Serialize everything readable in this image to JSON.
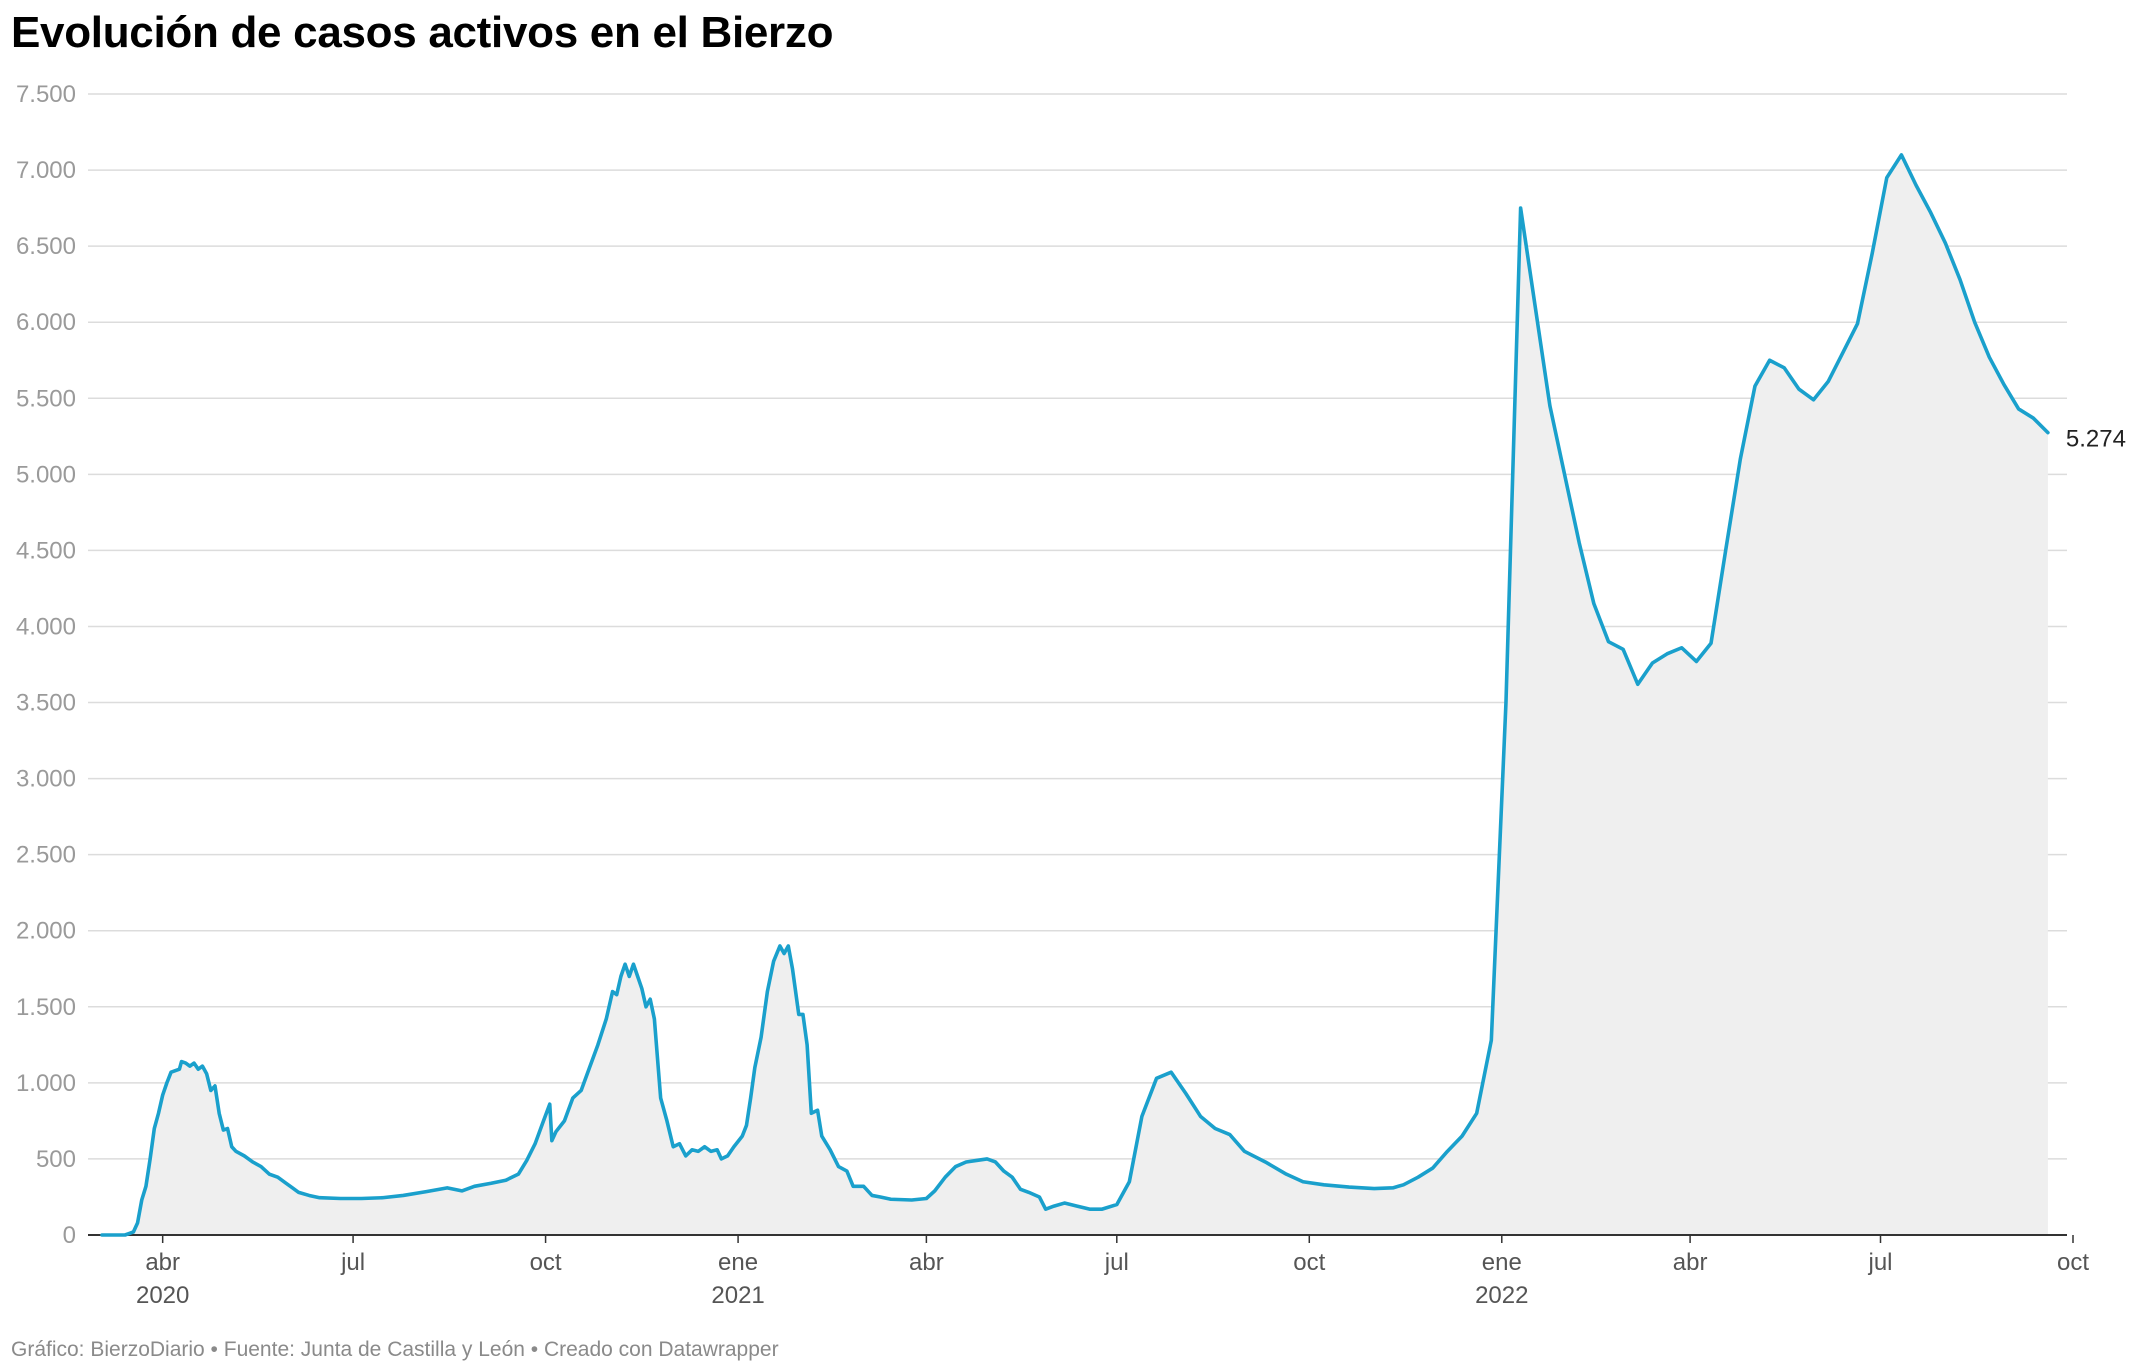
{
  "title": "Evolución de casos activos en el Bierzo",
  "footer": "Gráfico: BierzoDiario • Fuente: Junta de Castilla y León • Creado con Datawrapper",
  "colors": {
    "line": "#1aa0cc",
    "area": "#efefef",
    "grid": "#dcdcdc",
    "baseline": "#333333"
  },
  "chart_data": {
    "type": "area",
    "title": "Evolución de casos activos en el Bierzo",
    "xlabel": "",
    "ylabel": "",
    "grid": true,
    "xlim": [
      "2020-03-03",
      "2022-10-01"
    ],
    "ylim": [
      0,
      7500
    ],
    "yticks": [
      0,
      500,
      1000,
      1500,
      2000,
      2500,
      3000,
      3500,
      4000,
      4500,
      5000,
      5500,
      6000,
      6500,
      7000,
      7500
    ],
    "ytick_labels": [
      "0",
      "500",
      "1.000",
      "1.500",
      "2.000",
      "2.500",
      "3.000",
      "3.500",
      "4.000",
      "4.500",
      "5.000",
      "5.500",
      "6.000",
      "6.500",
      "7.000",
      "7.500"
    ],
    "xticks": [
      {
        "date": "2020-04-01",
        "label": "abr",
        "year": "2020"
      },
      {
        "date": "2020-07-01",
        "label": "jul",
        "year": ""
      },
      {
        "date": "2020-10-01",
        "label": "oct",
        "year": ""
      },
      {
        "date": "2021-01-01",
        "label": "ene",
        "year": "2021"
      },
      {
        "date": "2021-04-01",
        "label": "abr",
        "year": ""
      },
      {
        "date": "2021-07-01",
        "label": "jul",
        "year": ""
      },
      {
        "date": "2021-10-01",
        "label": "oct",
        "year": ""
      },
      {
        "date": "2022-01-01",
        "label": "ene",
        "year": "2022"
      },
      {
        "date": "2022-04-01",
        "label": "abr",
        "year": ""
      },
      {
        "date": "2022-07-01",
        "label": "jul",
        "year": ""
      },
      {
        "date": "2022-10-01",
        "label": "oct",
        "year": ""
      }
    ],
    "end_label": "5.274",
    "series": [
      {
        "name": "",
        "points": [
          [
            "2020-03-03",
            0
          ],
          [
            "2020-03-14",
            0
          ],
          [
            "2020-03-18",
            20
          ],
          [
            "2020-03-20",
            80
          ],
          [
            "2020-03-22",
            230
          ],
          [
            "2020-03-24",
            320
          ],
          [
            "2020-03-26",
            500
          ],
          [
            "2020-03-28",
            700
          ],
          [
            "2020-03-30",
            800
          ],
          [
            "2020-04-01",
            920
          ],
          [
            "2020-04-03",
            1000
          ],
          [
            "2020-04-05",
            1070
          ],
          [
            "2020-04-07",
            1080
          ],
          [
            "2020-04-09",
            1090
          ],
          [
            "2020-04-10",
            1140
          ],
          [
            "2020-04-12",
            1130
          ],
          [
            "2020-04-14",
            1110
          ],
          [
            "2020-04-16",
            1130
          ],
          [
            "2020-04-18",
            1090
          ],
          [
            "2020-04-20",
            1110
          ],
          [
            "2020-04-22",
            1060
          ],
          [
            "2020-04-24",
            950
          ],
          [
            "2020-04-26",
            980
          ],
          [
            "2020-04-28",
            800
          ],
          [
            "2020-04-30",
            690
          ],
          [
            "2020-05-02",
            700
          ],
          [
            "2020-05-04",
            580
          ],
          [
            "2020-05-06",
            550
          ],
          [
            "2020-05-10",
            520
          ],
          [
            "2020-05-14",
            480
          ],
          [
            "2020-05-18",
            450
          ],
          [
            "2020-05-22",
            400
          ],
          [
            "2020-05-26",
            380
          ],
          [
            "2020-05-30",
            340
          ],
          [
            "2020-06-02",
            310
          ],
          [
            "2020-06-05",
            280
          ],
          [
            "2020-06-10",
            260
          ],
          [
            "2020-06-15",
            245
          ],
          [
            "2020-06-25",
            240
          ],
          [
            "2020-07-05",
            240
          ],
          [
            "2020-07-15",
            245
          ],
          [
            "2020-07-25",
            260
          ],
          [
            "2020-08-05",
            285
          ],
          [
            "2020-08-15",
            310
          ],
          [
            "2020-08-22",
            290
          ],
          [
            "2020-08-28",
            320
          ],
          [
            "2020-09-05",
            340
          ],
          [
            "2020-09-12",
            360
          ],
          [
            "2020-09-18",
            400
          ],
          [
            "2020-09-22",
            490
          ],
          [
            "2020-09-26",
            600
          ],
          [
            "2020-09-30",
            750
          ],
          [
            "2020-10-03",
            860
          ],
          [
            "2020-10-04",
            620
          ],
          [
            "2020-10-06",
            680
          ],
          [
            "2020-10-10",
            750
          ],
          [
            "2020-10-14",
            900
          ],
          [
            "2020-10-18",
            950
          ],
          [
            "2020-10-22",
            1100
          ],
          [
            "2020-10-26",
            1250
          ],
          [
            "2020-10-30",
            1420
          ],
          [
            "2020-11-02",
            1600
          ],
          [
            "2020-11-04",
            1580
          ],
          [
            "2020-11-06",
            1700
          ],
          [
            "2020-11-08",
            1780
          ],
          [
            "2020-11-10",
            1700
          ],
          [
            "2020-11-12",
            1780
          ],
          [
            "2020-11-14",
            1700
          ],
          [
            "2020-11-16",
            1620
          ],
          [
            "2020-11-18",
            1500
          ],
          [
            "2020-11-20",
            1550
          ],
          [
            "2020-11-22",
            1420
          ],
          [
            "2020-11-25",
            900
          ],
          [
            "2020-11-28",
            750
          ],
          [
            "2020-12-01",
            580
          ],
          [
            "2020-12-04",
            600
          ],
          [
            "2020-12-07",
            520
          ],
          [
            "2020-12-10",
            560
          ],
          [
            "2020-12-13",
            550
          ],
          [
            "2020-12-16",
            580
          ],
          [
            "2020-12-19",
            550
          ],
          [
            "2020-12-22",
            560
          ],
          [
            "2020-12-24",
            500
          ],
          [
            "2020-12-27",
            520
          ],
          [
            "2020-12-30",
            580
          ],
          [
            "2021-01-03",
            650
          ],
          [
            "2021-01-05",
            720
          ],
          [
            "2021-01-07",
            900
          ],
          [
            "2021-01-09",
            1100
          ],
          [
            "2021-01-12",
            1300
          ],
          [
            "2021-01-15",
            1600
          ],
          [
            "2021-01-18",
            1800
          ],
          [
            "2021-01-21",
            1900
          ],
          [
            "2021-01-23",
            1850
          ],
          [
            "2021-01-25",
            1900
          ],
          [
            "2021-01-27",
            1750
          ],
          [
            "2021-01-30",
            1450
          ],
          [
            "2021-02-01",
            1450
          ],
          [
            "2021-02-03",
            1250
          ],
          [
            "2021-02-05",
            800
          ],
          [
            "2021-02-08",
            820
          ],
          [
            "2021-02-10",
            650
          ],
          [
            "2021-02-14",
            560
          ],
          [
            "2021-02-18",
            450
          ],
          [
            "2021-02-22",
            420
          ],
          [
            "2021-02-25",
            320
          ],
          [
            "2021-03-02",
            320
          ],
          [
            "2021-03-06",
            260
          ],
          [
            "2021-03-10",
            250
          ],
          [
            "2021-03-15",
            235
          ],
          [
            "2021-03-25",
            230
          ],
          [
            "2021-04-01",
            240
          ],
          [
            "2021-04-05",
            290
          ],
          [
            "2021-04-10",
            380
          ],
          [
            "2021-04-15",
            450
          ],
          [
            "2021-04-20",
            480
          ],
          [
            "2021-04-25",
            490
          ],
          [
            "2021-04-30",
            500
          ],
          [
            "2021-05-04",
            480
          ],
          [
            "2021-05-08",
            420
          ],
          [
            "2021-05-12",
            380
          ],
          [
            "2021-05-16",
            300
          ],
          [
            "2021-05-20",
            280
          ],
          [
            "2021-05-25",
            250
          ],
          [
            "2021-05-28",
            170
          ],
          [
            "2021-06-01",
            190
          ],
          [
            "2021-06-06",
            210
          ],
          [
            "2021-06-12",
            190
          ],
          [
            "2021-06-18",
            170
          ],
          [
            "2021-06-24",
            170
          ],
          [
            "2021-07-01",
            200
          ],
          [
            "2021-07-07",
            350
          ],
          [
            "2021-07-13",
            780
          ],
          [
            "2021-07-20",
            1030
          ],
          [
            "2021-07-27",
            1070
          ],
          [
            "2021-08-03",
            930
          ],
          [
            "2021-08-10",
            780
          ],
          [
            "2021-08-17",
            700
          ],
          [
            "2021-08-24",
            660
          ],
          [
            "2021-08-31",
            550
          ],
          [
            "2021-09-10",
            480
          ],
          [
            "2021-09-20",
            400
          ],
          [
            "2021-09-28",
            350
          ],
          [
            "2021-10-08",
            330
          ],
          [
            "2021-10-20",
            315
          ],
          [
            "2021-11-01",
            305
          ],
          [
            "2021-11-10",
            310
          ],
          [
            "2021-11-15",
            330
          ],
          [
            "2021-11-22",
            380
          ],
          [
            "2021-11-29",
            440
          ],
          [
            "2021-12-06",
            550
          ],
          [
            "2021-12-13",
            650
          ],
          [
            "2021-12-20",
            800
          ],
          [
            "2021-12-27",
            1280
          ],
          [
            "2022-01-03",
            3500
          ],
          [
            "2022-01-10",
            6750
          ],
          [
            "2022-01-17",
            6100
          ],
          [
            "2022-01-24",
            5450
          ],
          [
            "2022-01-31",
            5000
          ],
          [
            "2022-02-07",
            4550
          ],
          [
            "2022-02-14",
            4150
          ],
          [
            "2022-02-21",
            3900
          ],
          [
            "2022-02-28",
            3850
          ],
          [
            "2022-03-07",
            3620
          ],
          [
            "2022-03-14",
            3760
          ],
          [
            "2022-03-21",
            3820
          ],
          [
            "2022-03-28",
            3860
          ],
          [
            "2022-04-04",
            3770
          ],
          [
            "2022-04-11",
            3890
          ],
          [
            "2022-04-18",
            4500
          ],
          [
            "2022-04-25",
            5100
          ],
          [
            "2022-05-02",
            5580
          ],
          [
            "2022-05-09",
            5750
          ],
          [
            "2022-05-16",
            5700
          ],
          [
            "2022-05-23",
            5560
          ],
          [
            "2022-05-30",
            5490
          ],
          [
            "2022-06-06",
            5610
          ],
          [
            "2022-06-13",
            5800
          ],
          [
            "2022-06-20",
            5990
          ],
          [
            "2022-06-27",
            6450
          ],
          [
            "2022-07-04",
            6950
          ],
          [
            "2022-07-11",
            7100
          ],
          [
            "2022-07-18",
            6900
          ],
          [
            "2022-07-25",
            6720
          ],
          [
            "2022-08-01",
            6520
          ],
          [
            "2022-08-08",
            6280
          ],
          [
            "2022-08-15",
            6000
          ],
          [
            "2022-08-22",
            5770
          ],
          [
            "2022-08-29",
            5590
          ],
          [
            "2022-09-05",
            5430
          ],
          [
            "2022-09-12",
            5370
          ],
          [
            "2022-09-19",
            5274
          ]
        ]
      }
    ]
  }
}
